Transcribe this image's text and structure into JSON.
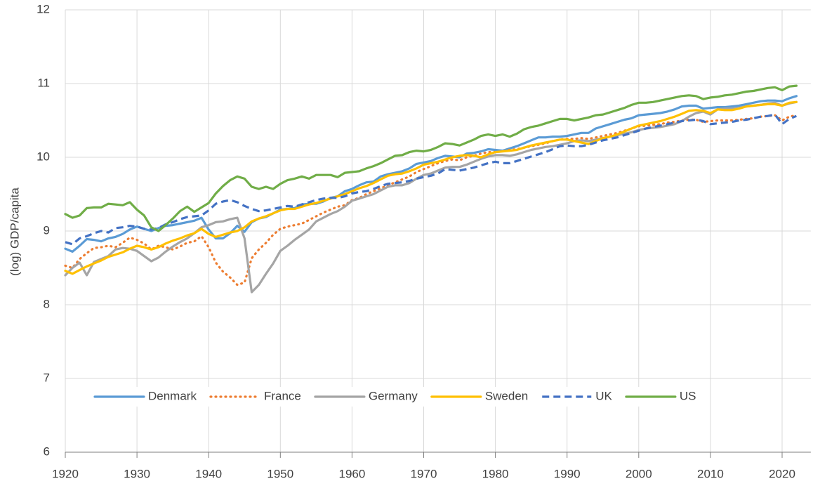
{
  "chart_data": {
    "type": "line",
    "y_label": "(log) GDP/capita",
    "x": [
      1920,
      1921,
      1922,
      1923,
      1924,
      1925,
      1926,
      1927,
      1928,
      1929,
      1930,
      1931,
      1932,
      1933,
      1934,
      1935,
      1936,
      1937,
      1938,
      1939,
      1940,
      1941,
      1942,
      1943,
      1944,
      1945,
      1946,
      1947,
      1948,
      1949,
      1950,
      1951,
      1952,
      1953,
      1954,
      1955,
      1956,
      1957,
      1958,
      1959,
      1960,
      1961,
      1962,
      1963,
      1964,
      1965,
      1966,
      1967,
      1968,
      1969,
      1970,
      1971,
      1972,
      1973,
      1974,
      1975,
      1976,
      1977,
      1978,
      1979,
      1980,
      1981,
      1982,
      1983,
      1984,
      1985,
      1986,
      1987,
      1988,
      1989,
      1990,
      1991,
      1992,
      1993,
      1994,
      1995,
      1996,
      1997,
      1998,
      1999,
      2000,
      2001,
      2002,
      2003,
      2004,
      2005,
      2006,
      2007,
      2008,
      2009,
      2010,
      2011,
      2012,
      2013,
      2014,
      2015,
      2016,
      2017,
      2018,
      2019,
      2020,
      2021,
      2022
    ],
    "series": [
      {
        "name": "Denmark",
        "color": "#5b9bd5",
        "dash": "solid",
        "values": [
          8.76,
          8.72,
          8.8,
          8.89,
          8.88,
          8.86,
          8.9,
          8.92,
          8.96,
          9.02,
          9.06,
          9.03,
          9.0,
          9.04,
          9.07,
          9.08,
          9.1,
          9.12,
          9.14,
          9.18,
          9.02,
          8.9,
          8.9,
          8.97,
          9.07,
          8.99,
          9.12,
          9.17,
          9.19,
          9.24,
          9.29,
          9.3,
          9.31,
          9.36,
          9.37,
          9.37,
          9.4,
          9.45,
          9.47,
          9.54,
          9.57,
          9.62,
          9.66,
          9.67,
          9.74,
          9.77,
          9.79,
          9.81,
          9.85,
          9.91,
          9.93,
          9.95,
          9.99,
          10.02,
          10.01,
          10.0,
          10.05,
          10.06,
          10.08,
          10.11,
          10.1,
          10.09,
          10.12,
          10.15,
          10.19,
          10.23,
          10.27,
          10.27,
          10.28,
          10.28,
          10.29,
          10.31,
          10.33,
          10.33,
          10.39,
          10.42,
          10.45,
          10.48,
          10.51,
          10.53,
          10.57,
          10.58,
          10.59,
          10.6,
          10.62,
          10.65,
          10.69,
          10.7,
          10.7,
          10.66,
          10.67,
          10.68,
          10.68,
          10.69,
          10.7,
          10.72,
          10.74,
          10.76,
          10.77,
          10.77,
          10.76,
          10.8,
          10.83
        ]
      },
      {
        "name": "France",
        "color": "#ed7d31",
        "dash": "dot",
        "values": [
          8.53,
          8.5,
          8.62,
          8.7,
          8.77,
          8.78,
          8.8,
          8.78,
          8.84,
          8.91,
          8.88,
          8.83,
          8.75,
          8.8,
          8.78,
          8.75,
          8.79,
          8.84,
          8.86,
          8.93,
          8.78,
          8.57,
          8.45,
          8.37,
          8.27,
          8.3,
          8.63,
          8.75,
          8.84,
          8.95,
          9.03,
          9.06,
          9.08,
          9.1,
          9.15,
          9.2,
          9.25,
          9.29,
          9.33,
          9.35,
          9.42,
          9.45,
          9.5,
          9.54,
          9.58,
          9.62,
          9.66,
          9.7,
          9.74,
          9.8,
          9.84,
          9.88,
          9.92,
          9.95,
          9.97,
          9.96,
          10.0,
          10.02,
          10.05,
          10.07,
          10.07,
          10.08,
          10.1,
          10.11,
          10.13,
          10.15,
          10.17,
          10.19,
          10.22,
          10.24,
          10.25,
          10.25,
          10.26,
          10.25,
          10.27,
          10.29,
          10.31,
          10.33,
          10.36,
          10.39,
          10.42,
          10.43,
          10.44,
          10.45,
          10.47,
          10.48,
          10.5,
          10.51,
          10.51,
          10.48,
          10.49,
          10.5,
          10.5,
          10.5,
          10.51,
          10.52,
          10.53,
          10.55,
          10.56,
          10.57,
          10.5,
          10.55,
          10.57
        ]
      },
      {
        "name": "Germany",
        "color": "#a5a5a5",
        "dash": "solid",
        "values": [
          8.4,
          8.5,
          8.57,
          8.4,
          8.58,
          8.62,
          8.66,
          8.75,
          8.77,
          8.76,
          8.73,
          8.66,
          8.59,
          8.64,
          8.72,
          8.79,
          8.85,
          8.9,
          8.97,
          9.05,
          9.08,
          9.12,
          9.13,
          9.16,
          9.18,
          8.9,
          8.17,
          8.27,
          8.42,
          8.56,
          8.73,
          8.8,
          8.88,
          8.95,
          9.02,
          9.13,
          9.18,
          9.23,
          9.27,
          9.33,
          9.41,
          9.44,
          9.47,
          9.5,
          9.55,
          9.6,
          9.62,
          9.62,
          9.65,
          9.71,
          9.76,
          9.78,
          9.82,
          9.86,
          9.87,
          9.87,
          9.9,
          9.94,
          9.98,
          10.01,
          10.03,
          10.03,
          10.02,
          10.04,
          10.07,
          10.1,
          10.12,
          10.14,
          10.15,
          10.17,
          10.19,
          10.22,
          10.23,
          10.22,
          10.24,
          10.26,
          10.28,
          10.3,
          10.32,
          10.34,
          10.37,
          10.39,
          10.4,
          10.41,
          10.43,
          10.45,
          10.49,
          10.55,
          10.6,
          10.62,
          10.58,
          10.65,
          10.66,
          10.66,
          10.67,
          10.69,
          10.7,
          10.71,
          10.73,
          10.74,
          10.7,
          10.73,
          10.75
        ]
      },
      {
        "name": "Sweden",
        "color": "#ffc000",
        "dash": "solid",
        "values": [
          8.46,
          8.42,
          8.47,
          8.52,
          8.56,
          8.6,
          8.65,
          8.68,
          8.71,
          8.76,
          8.8,
          8.78,
          8.75,
          8.78,
          8.83,
          8.87,
          8.9,
          8.94,
          8.97,
          9.03,
          8.96,
          8.92,
          8.95,
          8.98,
          9.0,
          9.05,
          9.13,
          9.17,
          9.2,
          9.24,
          9.28,
          9.3,
          9.3,
          9.33,
          9.36,
          9.38,
          9.41,
          9.44,
          9.47,
          9.5,
          9.54,
          9.58,
          9.61,
          9.65,
          9.7,
          9.75,
          9.77,
          9.78,
          9.81,
          9.85,
          9.9,
          9.92,
          9.94,
          9.97,
          10.0,
          10.02,
          10.03,
          10.02,
          10.0,
          10.04,
          10.07,
          10.08,
          10.09,
          10.1,
          10.13,
          10.16,
          10.18,
          10.2,
          10.22,
          10.24,
          10.24,
          10.22,
          10.2,
          10.18,
          10.22,
          10.26,
          10.28,
          10.31,
          10.35,
          10.39,
          10.43,
          10.45,
          10.47,
          10.49,
          10.52,
          10.55,
          10.59,
          10.63,
          10.64,
          10.63,
          10.6,
          10.65,
          10.64,
          10.64,
          10.66,
          10.69,
          10.7,
          10.71,
          10.72,
          10.72,
          10.7,
          10.74,
          10.75
        ]
      },
      {
        "name": "UK",
        "color": "#4472c4",
        "dash": "dash",
        "values": [
          8.85,
          8.82,
          8.9,
          8.93,
          8.97,
          9.0,
          8.98,
          9.04,
          9.05,
          9.07,
          9.06,
          9.03,
          9.02,
          9.04,
          9.09,
          9.12,
          9.16,
          9.19,
          9.2,
          9.21,
          9.28,
          9.37,
          9.4,
          9.42,
          9.39,
          9.34,
          9.3,
          9.27,
          9.28,
          9.3,
          9.32,
          9.34,
          9.33,
          9.36,
          9.39,
          9.42,
          9.44,
          9.45,
          9.45,
          9.47,
          9.51,
          9.53,
          9.54,
          9.57,
          9.61,
          9.64,
          9.65,
          9.66,
          9.68,
          9.71,
          9.73,
          9.75,
          9.78,
          9.84,
          9.83,
          9.82,
          9.84,
          9.86,
          9.89,
          9.92,
          9.94,
          9.92,
          9.92,
          9.95,
          9.98,
          10.01,
          10.04,
          10.07,
          10.11,
          10.15,
          10.16,
          10.15,
          10.15,
          10.17,
          10.2,
          10.23,
          10.25,
          10.27,
          10.3,
          10.33,
          10.36,
          10.39,
          10.41,
          10.43,
          10.45,
          10.47,
          10.49,
          10.5,
          10.51,
          10.49,
          10.45,
          10.46,
          10.47,
          10.48,
          10.5,
          10.51,
          10.53,
          10.55,
          10.56,
          10.58,
          10.45,
          10.52,
          10.56
        ]
      },
      {
        "name": "US",
        "color": "#70ad47",
        "dash": "solid",
        "values": [
          9.23,
          9.18,
          9.21,
          9.31,
          9.32,
          9.32,
          9.37,
          9.36,
          9.35,
          9.39,
          9.29,
          9.21,
          9.05,
          9.0,
          9.08,
          9.17,
          9.27,
          9.33,
          9.26,
          9.32,
          9.38,
          9.51,
          9.61,
          9.69,
          9.74,
          9.71,
          9.6,
          9.57,
          9.6,
          9.57,
          9.64,
          9.69,
          9.71,
          9.74,
          9.71,
          9.76,
          9.76,
          9.76,
          9.73,
          9.79,
          9.8,
          9.81,
          9.85,
          9.88,
          9.92,
          9.97,
          10.02,
          10.03,
          10.07,
          10.09,
          10.08,
          10.1,
          10.14,
          10.19,
          10.18,
          10.16,
          10.2,
          10.24,
          10.29,
          10.31,
          10.29,
          10.31,
          10.28,
          10.32,
          10.38,
          10.41,
          10.43,
          10.46,
          10.49,
          10.52,
          10.52,
          10.5,
          10.52,
          10.54,
          10.57,
          10.58,
          10.61,
          10.64,
          10.67,
          10.71,
          10.74,
          10.74,
          10.75,
          10.77,
          10.79,
          10.81,
          10.83,
          10.84,
          10.83,
          10.79,
          10.81,
          10.82,
          10.84,
          10.85,
          10.87,
          10.89,
          10.9,
          10.92,
          10.94,
          10.95,
          10.91,
          10.96,
          10.97
        ]
      }
    ],
    "xlim": [
      1920,
      2024
    ],
    "xticks": [
      1920,
      1930,
      1940,
      1950,
      1960,
      1970,
      1980,
      1990,
      2000,
      2010,
      2020
    ],
    "ylim": [
      6,
      12
    ],
    "yticks": [
      6,
      7,
      8,
      9,
      10,
      11,
      12
    ],
    "grid": true,
    "legend": "bottom"
  }
}
